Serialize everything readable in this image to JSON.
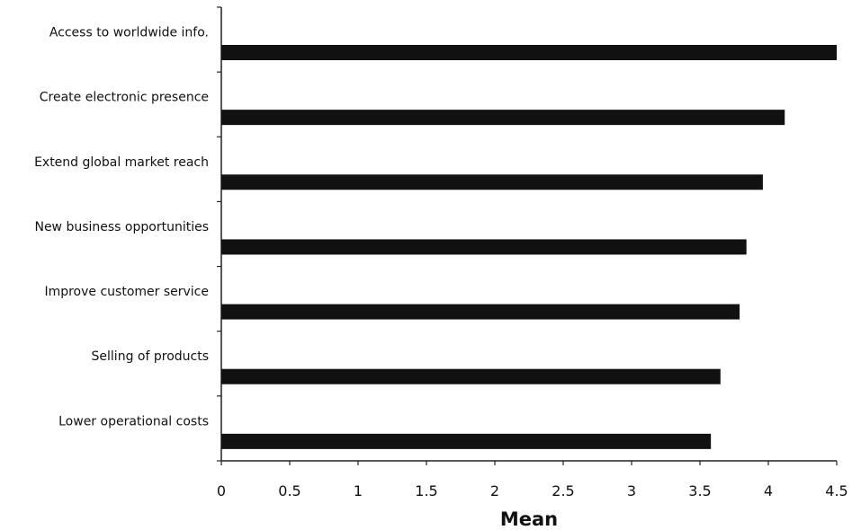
{
  "chart_data": {
    "type": "bar",
    "orientation": "horizontal",
    "categories": [
      "Access to worldwide info.",
      "Create electronic presence",
      "Extend global market reach",
      "New business opportunities",
      "Improve customer service",
      "Selling of products",
      "Lower operational costs"
    ],
    "values": [
      4.5,
      4.12,
      3.96,
      3.84,
      3.79,
      3.65,
      3.58
    ],
    "xlabel": "Mean",
    "xlim": [
      0,
      4.5
    ],
    "xticks": [
      "0",
      "0.5",
      "1",
      "1.5",
      "2",
      "2.5",
      "3",
      "3.5",
      "4",
      "4.5"
    ],
    "grid": false,
    "bar_color": "#111111"
  }
}
